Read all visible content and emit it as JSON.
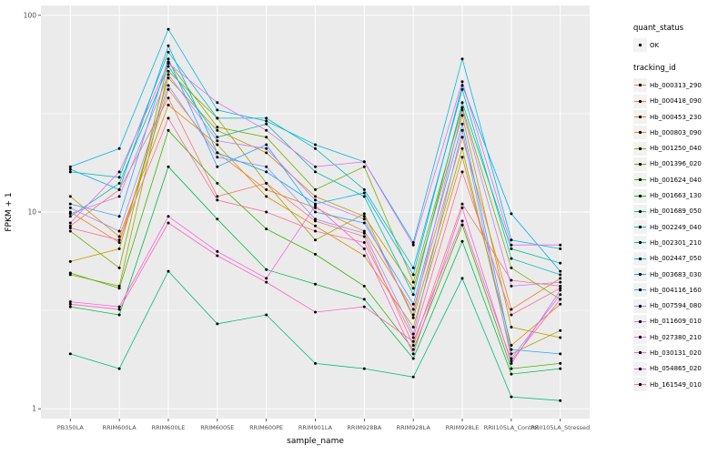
{
  "figure": {
    "background": "#FFFFFF",
    "panel_background": "#EBEBEB",
    "grid_color": "#FFFFFF",
    "tick_label_color": "#4D4D4D",
    "axis_title_color": "#000000",
    "legend_key_fill": "#F2F2F2",
    "point_color": "#000000"
  },
  "legend": {
    "quant_status_title": "quant_status",
    "quant_status_items": [
      {
        "label": "OK",
        "shape": "point"
      }
    ],
    "tracking_title": "tracking_id"
  },
  "chart_data": {
    "type": "line",
    "title": "",
    "xlabel": "sample_name",
    "ylabel": "FPKM + 1",
    "y_scale": "log10",
    "ylim": [
      1,
      100
    ],
    "y_ticks": [
      1,
      10,
      100
    ],
    "y_tick_labels": [
      "1",
      "10",
      "100"
    ],
    "y_minor_ticks": [
      3.1623,
      31.623
    ],
    "grid": true,
    "legend_position": "right",
    "categories": [
      "PB350LA",
      "RRIM600LA",
      "RRIM600LE",
      "RRIM600SE",
      "RRIM600PE",
      "RRIM901LA",
      "RRIM928BA",
      "RRIM928LA",
      "RRIM928LE",
      "RRII105LA_Control",
      "RRII105LA_Stressed"
    ],
    "series": [
      {
        "name": "Hb_000313_290",
        "color": "#F8766D",
        "values": [
          8.5,
          13,
          38,
          12,
          14,
          9,
          7.5,
          2.1,
          11,
          4.5,
          4.2
        ]
      },
      {
        "name": "Hb_000418_090",
        "color": "#EA8331",
        "values": [
          10,
          7,
          42,
          20,
          13,
          10.5,
          8,
          3.2,
          24,
          3.2,
          4.6
        ]
      },
      {
        "name": "Hb_000453_230",
        "color": "#D89000",
        "values": [
          12,
          7.5,
          35,
          22,
          12,
          8.5,
          6,
          2.6,
          19,
          2.1,
          3.4
        ]
      },
      {
        "name": "Hb_000803_090",
        "color": "#C09B00",
        "values": [
          5.6,
          6.5,
          48,
          26,
          20,
          12,
          9.5,
          4.1,
          31,
          2.6,
          2.3
        ]
      },
      {
        "name": "Hb_001250_040",
        "color": "#A3A500",
        "values": [
          4.8,
          4.2,
          52,
          30,
          14,
          7.2,
          9.8,
          2.9,
          21,
          1.9,
          2.5
        ]
      },
      {
        "name": "Hb_001396_020",
        "color": "#7CAE00",
        "values": [
          8,
          5.2,
          58,
          27,
          24,
          13,
          17,
          4.4,
          34,
          5.2,
          3.6
        ]
      },
      {
        "name": "Hb_001624_040",
        "color": "#39B600",
        "values": [
          4.9,
          4.1,
          26,
          14,
          8.2,
          6.1,
          4.2,
          2.0,
          8.6,
          1.6,
          1.7
        ]
      },
      {
        "name": "Hb_001663_130",
        "color": "#00BB4E",
        "values": [
          3.3,
          3.0,
          17,
          9.2,
          5.1,
          4.3,
          3.6,
          1.8,
          7.1,
          1.5,
          1.6
        ]
      },
      {
        "name": "Hb_001689_050",
        "color": "#00BF7D",
        "values": [
          1.9,
          1.6,
          5.0,
          2.7,
          3.0,
          1.7,
          1.6,
          1.45,
          4.6,
          1.15,
          1.1
        ]
      },
      {
        "name": "Hb_002249_040",
        "color": "#00C1A3",
        "values": [
          9.5,
          14,
          55,
          24,
          28,
          16,
          12,
          3.8,
          36,
          6.5,
          5.5
        ]
      },
      {
        "name": "Hb_002301_210",
        "color": "#00BFC4",
        "values": [
          16,
          15,
          65,
          30,
          30,
          21,
          13,
          5.2,
          42,
          5.8,
          4.8
        ]
      },
      {
        "name": "Hb_002447_050",
        "color": "#00BAE0",
        "values": [
          17,
          21,
          85,
          33,
          29,
          22,
          18,
          7.0,
          60,
          7.2,
          6.5
        ]
      },
      {
        "name": "Hb_003683_030",
        "color": "#00B0F6",
        "values": [
          16.5,
          13,
          70,
          20,
          16,
          11,
          12.5,
          4.8,
          44,
          9.8,
          5.0
        ]
      },
      {
        "name": "Hb_004116_160",
        "color": "#35A2FF",
        "values": [
          11,
          9.5,
          60,
          17,
          22,
          10,
          8.8,
          3.4,
          28,
          2.0,
          1.9
        ]
      },
      {
        "name": "Hb_007594_080",
        "color": "#9590FF",
        "values": [
          10.5,
          8,
          44,
          19,
          17,
          9.2,
          7.8,
          2.4,
          26,
          1.8,
          3.8
        ]
      },
      {
        "name": "Hb_011609_010",
        "color": "#C77CFF",
        "values": [
          9.8,
          12,
          50,
          23,
          21,
          11.5,
          9.2,
          3.0,
          33,
          4.2,
          4.4
        ]
      },
      {
        "name": "Hb_027380_210",
        "color": "#E76BF3",
        "values": [
          8.8,
          16,
          57,
          36,
          26,
          17,
          18,
          6.8,
          46,
          6.8,
          6.8
        ]
      },
      {
        "name": "Hb_030131_020",
        "color": "#FA62DB",
        "values": [
          3.5,
          3.3,
          9.5,
          6.3,
          4.6,
          10.8,
          6.5,
          1.9,
          10.5,
          1.7,
          4.0
        ]
      },
      {
        "name": "Hb_054865_020",
        "color": "#FF62BC",
        "values": [
          3.4,
          3.2,
          8.8,
          6.0,
          4.4,
          3.1,
          3.3,
          2.2,
          9.0,
          1.75,
          3.6
        ]
      },
      {
        "name": "Hb_161549_010",
        "color": "#FF6A98",
        "values": [
          8.3,
          7.2,
          30,
          11.5,
          10,
          8.0,
          7.0,
          2.3,
          16,
          3.0,
          4.1
        ]
      }
    ]
  }
}
